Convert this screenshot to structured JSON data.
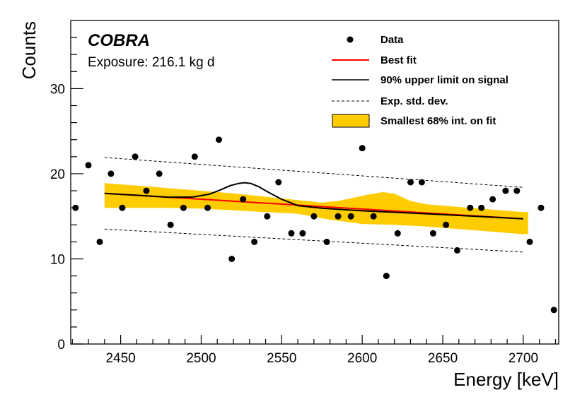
{
  "chart_data": {
    "type": "scatter",
    "title": "",
    "xlabel": "Energy [keV]",
    "ylabel": "Counts",
    "xlim": [
      2419,
      2722
    ],
    "ylim": [
      0,
      38
    ],
    "x_ticks": [
      2450,
      2500,
      2550,
      2600,
      2650,
      2700
    ],
    "x_tick_labels": [
      "2450",
      "2500",
      "2550",
      "2600",
      "2650",
      "2700"
    ],
    "y_ticks": [
      0,
      10,
      20,
      30
    ],
    "y_tick_labels": [
      "0",
      "10",
      "20",
      "30"
    ],
    "annotations": {
      "experiment": "COBRA",
      "exposure": "Exposure: 216.1 kg d"
    },
    "legend": {
      "position": "top-right",
      "entries": [
        {
          "label": "Data",
          "style": "marker",
          "color": "#000000"
        },
        {
          "label": "Best fit",
          "style": "line",
          "color": "#ff0000"
        },
        {
          "label": "90% upper limit on signal",
          "style": "line",
          "color": "#000000"
        },
        {
          "label": "Exp. std. dev.",
          "style": "dashed",
          "color": "#000000"
        },
        {
          "label": "Smallest 68% int. on fit",
          "style": "band",
          "color": "#ffcc00"
        }
      ]
    },
    "series": [
      {
        "name": "Data",
        "style": "marker",
        "points": [
          [
            2422,
            16
          ],
          [
            2430,
            21
          ],
          [
            2437,
            12
          ],
          [
            2444,
            20
          ],
          [
            2451,
            16
          ],
          [
            2459,
            22
          ],
          [
            2466,
            18
          ],
          [
            2474,
            20
          ],
          [
            2481,
            14
          ],
          [
            2489,
            16
          ],
          [
            2496,
            22
          ],
          [
            2504,
            16
          ],
          [
            2511,
            24
          ],
          [
            2519,
            10
          ],
          [
            2526,
            17
          ],
          [
            2533,
            12
          ],
          [
            2541,
            15
          ],
          [
            2548,
            19
          ],
          [
            2556,
            13
          ],
          [
            2563,
            13
          ],
          [
            2570,
            15
          ],
          [
            2578,
            12
          ],
          [
            2585,
            15
          ],
          [
            2593,
            15
          ],
          [
            2600,
            23
          ],
          [
            2607,
            15
          ],
          [
            2615,
            8
          ],
          [
            2622,
            13
          ],
          [
            2630,
            19
          ],
          [
            2637,
            19
          ],
          [
            2644,
            13
          ],
          [
            2652,
            14
          ],
          [
            2659,
            11
          ],
          [
            2667,
            16
          ],
          [
            2674,
            16
          ],
          [
            2681,
            17
          ],
          [
            2689,
            18
          ],
          [
            2696,
            18
          ],
          [
            2704,
            12
          ],
          [
            2711,
            16
          ],
          [
            2719,
            4
          ]
        ]
      },
      {
        "name": "Best fit",
        "style": "line",
        "points": [
          [
            2440,
            17.7
          ],
          [
            2700,
            14.7
          ]
        ]
      },
      {
        "name": "90% upper limit on signal",
        "style": "line",
        "points": [
          [
            2440,
            17.7
          ],
          [
            2460,
            17.47
          ],
          [
            2480,
            17.24
          ],
          [
            2495,
            17.27
          ],
          [
            2505,
            17.6
          ],
          [
            2512,
            18.1
          ],
          [
            2518,
            18.6
          ],
          [
            2523,
            18.85
          ],
          [
            2527,
            18.95
          ],
          [
            2531,
            18.85
          ],
          [
            2536,
            18.45
          ],
          [
            2542,
            17.8
          ],
          [
            2550,
            17.0
          ],
          [
            2560,
            16.25
          ],
          [
            2575,
            15.95
          ],
          [
            2600,
            15.65
          ],
          [
            2650,
            15.2
          ],
          [
            2700,
            14.7
          ]
        ]
      },
      {
        "name": "Exp. std. dev. (upper)",
        "style": "dashed",
        "points": [
          [
            2440,
            21.9
          ],
          [
            2700,
            18.4
          ]
        ]
      },
      {
        "name": "Exp. std. dev. (lower)",
        "style": "dashed",
        "points": [
          [
            2440,
            13.5
          ],
          [
            2700,
            10.8
          ]
        ]
      },
      {
        "name": "Smallest 68% int. on fit",
        "style": "band",
        "upper": [
          [
            2440,
            18.9
          ],
          [
            2460,
            18.6
          ],
          [
            2480,
            18.3
          ],
          [
            2500,
            18.0
          ],
          [
            2520,
            17.7
          ],
          [
            2540,
            17.3
          ],
          [
            2560,
            16.9
          ],
          [
            2575,
            16.6
          ],
          [
            2585,
            16.8
          ],
          [
            2595,
            17.2
          ],
          [
            2605,
            17.6
          ],
          [
            2613,
            17.85
          ],
          [
            2620,
            17.65
          ],
          [
            2630,
            16.8
          ],
          [
            2640,
            16.4
          ],
          [
            2660,
            16.1
          ],
          [
            2680,
            15.8
          ],
          [
            2700,
            15.5
          ],
          [
            2703,
            15.5
          ]
        ],
        "lower": [
          [
            2440,
            16.0
          ],
          [
            2460,
            16.0
          ],
          [
            2480,
            16.0
          ],
          [
            2500,
            15.9
          ],
          [
            2520,
            15.7
          ],
          [
            2540,
            15.5
          ],
          [
            2560,
            15.3
          ],
          [
            2580,
            14.6
          ],
          [
            2600,
            14.1
          ],
          [
            2620,
            14.0
          ],
          [
            2640,
            13.8
          ],
          [
            2660,
            13.5
          ],
          [
            2680,
            13.2
          ],
          [
            2700,
            12.9
          ],
          [
            2703,
            12.9
          ]
        ]
      }
    ]
  }
}
